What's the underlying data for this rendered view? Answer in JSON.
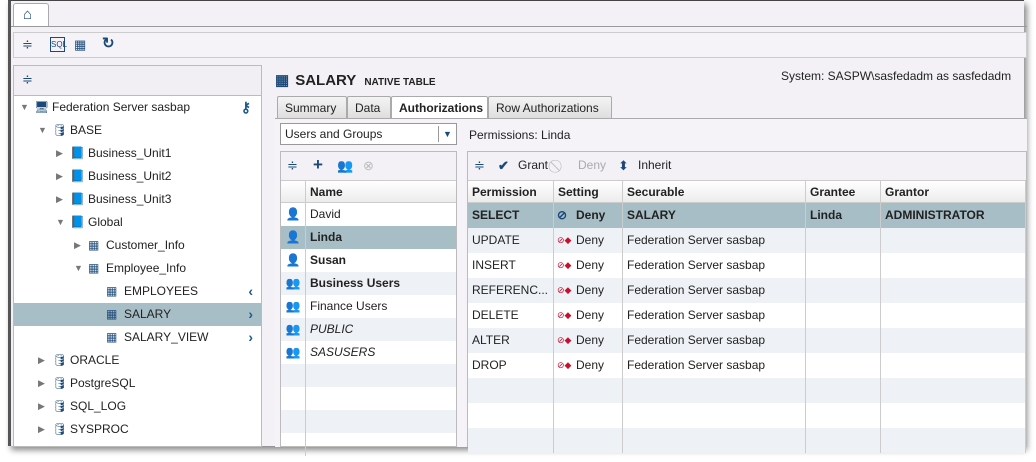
{
  "app": {
    "home_tab_icon": "home-icon",
    "system_label": "System: SASPW\\sasfedadm as sasfedadm"
  },
  "toolbar": {
    "icons": [
      "menu-icon",
      "sql-icon",
      "schedule-icon",
      "refresh-icon"
    ]
  },
  "tree": {
    "items": [
      {
        "label": "Federation Server sasbap",
        "level": 0,
        "icon": "server-icon",
        "expanded": true
      },
      {
        "label": "BASE",
        "level": 1,
        "icon": "database-icon",
        "expanded": true
      },
      {
        "label": "Business_Unit1",
        "level": 2,
        "icon": "catalog-icon",
        "expanded": false
      },
      {
        "label": "Business_Unit2",
        "level": 2,
        "icon": "catalog-icon",
        "expanded": false
      },
      {
        "label": "Business_Unit3",
        "level": 2,
        "icon": "catalog-icon",
        "expanded": false
      },
      {
        "label": "Global",
        "level": 2,
        "icon": "catalog-icon",
        "expanded": true
      },
      {
        "label": "Customer_Info",
        "level": 3,
        "icon": "schema-icon",
        "expanded": false
      },
      {
        "label": "Employee_Info",
        "level": 3,
        "icon": "schema-icon",
        "expanded": true
      },
      {
        "label": "EMPLOYEES",
        "level": 4,
        "icon": "table-icon",
        "chevron": "left"
      },
      {
        "label": "SALARY",
        "level": 4,
        "icon": "table-icon",
        "chevron": "right",
        "selected": true
      },
      {
        "label": "SALARY_VIEW",
        "level": 4,
        "icon": "view-icon",
        "chevron": "right"
      },
      {
        "label": "ORACLE",
        "level": 1,
        "icon": "database-icon",
        "expanded": false
      },
      {
        "label": "PostgreSQL",
        "level": 1,
        "icon": "database-icon",
        "expanded": false
      },
      {
        "label": "SQL_LOG",
        "level": 1,
        "icon": "database-icon",
        "expanded": false
      },
      {
        "label": "SYSPROC",
        "level": 1,
        "icon": "database-icon",
        "expanded": false
      }
    ]
  },
  "header": {
    "title": "SALARY",
    "subtitle": "NATIVE TABLE"
  },
  "tabs": [
    {
      "label": "Summary"
    },
    {
      "label": "Data"
    },
    {
      "label": "Authorizations",
      "active": true
    },
    {
      "label": "Row Authorizations"
    }
  ],
  "users": {
    "filter_value": "Users and Groups",
    "column": "Name",
    "rows": [
      {
        "name": "David",
        "type": "user",
        "style": "normal"
      },
      {
        "name": "Linda",
        "type": "user",
        "style": "bold",
        "selected": true
      },
      {
        "name": "Susan",
        "type": "user",
        "style": "bold"
      },
      {
        "name": "Business Users",
        "type": "group",
        "style": "bold"
      },
      {
        "name": "Finance Users",
        "type": "group",
        "style": "normal"
      },
      {
        "name": "PUBLIC",
        "type": "group",
        "style": "italic"
      },
      {
        "name": "SASUSERS",
        "type": "group",
        "style": "italic"
      }
    ]
  },
  "permissions": {
    "label": "Permissions: Linda",
    "toolbar": {
      "grant": "Grant",
      "deny": "Deny",
      "inherit": "Inherit"
    },
    "columns": [
      "Permission",
      "Setting",
      "Securable",
      "Grantee",
      "Grantor"
    ],
    "rows": [
      {
        "permission": "SELECT",
        "setting": "Deny",
        "securable": "SALARY",
        "grantee": "Linda",
        "grantor": "ADMINISTRATOR",
        "explicit": true
      },
      {
        "permission": "UPDATE",
        "setting": "Deny",
        "securable": "Federation Server sasbap",
        "grantee": "",
        "grantor": ""
      },
      {
        "permission": "INSERT",
        "setting": "Deny",
        "securable": "Federation Server sasbap",
        "grantee": "",
        "grantor": ""
      },
      {
        "permission": "REFERENC...",
        "setting": "Deny",
        "securable": "Federation Server sasbap",
        "grantee": "",
        "grantor": ""
      },
      {
        "permission": "DELETE",
        "setting": "Deny",
        "securable": "Federation Server sasbap",
        "grantee": "",
        "grantor": ""
      },
      {
        "permission": "ALTER",
        "setting": "Deny",
        "securable": "Federation Server sasbap",
        "grantee": "",
        "grantor": ""
      },
      {
        "permission": "DROP",
        "setting": "Deny",
        "securable": "Federation Server sasbap",
        "grantee": "",
        "grantor": ""
      }
    ]
  },
  "colors": {
    "selection": "#a7bec6",
    "icon": "#1c4a78",
    "inherited_deny": "#c8102e"
  }
}
